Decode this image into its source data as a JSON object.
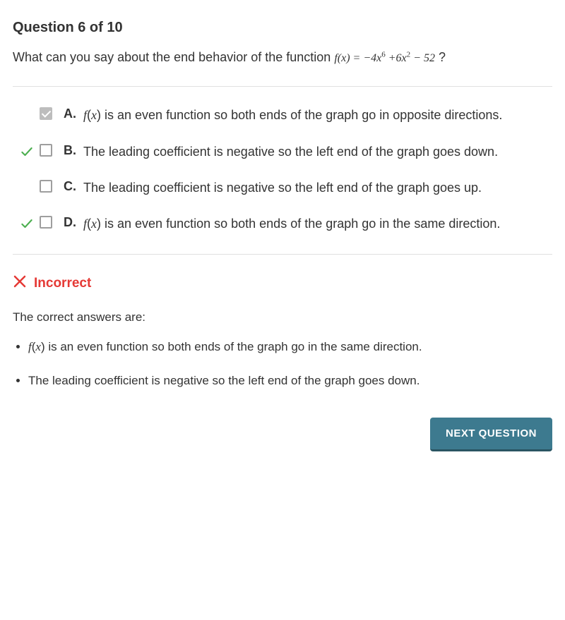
{
  "header": "Question 6 of 10",
  "prompt_prefix": "What can you say about the end behavior of the function ",
  "prompt_fn_html": "<span class='fn'><span class='var'>f</span>(<span class='var'>x</span>) = −4<span class='var'>x</span><span class='exp'>6</span> +6<span class='var'>x</span><span class='exp'>2</span> − 52</span>",
  "prompt_suffix": " ?",
  "options": [
    {
      "letter": "A.",
      "checked": true,
      "correct_mark": false,
      "text_html": "<span class='fx'>f</span>(<span class='fx'>x</span>) is an even function so both ends of the graph go in opposite directions."
    },
    {
      "letter": "B.",
      "checked": false,
      "correct_mark": true,
      "text_html": "The leading coefficient is negative so the left end of the graph goes down."
    },
    {
      "letter": "C.",
      "checked": false,
      "correct_mark": false,
      "text_html": "The leading coefficient is negative so the left end of the graph goes up."
    },
    {
      "letter": "D.",
      "checked": false,
      "correct_mark": true,
      "text_html": "<span class='fx'>f</span>(<span class='fx'>x</span>) is an even function so both ends of the graph go in the same direction."
    }
  ],
  "feedback_label": "Incorrect",
  "correct_answers_label": "The correct answers are:",
  "correct_answers": [
    "<span class='fx'>f</span>(<span class='fx'>x</span>) is an even function so both ends of the graph go in the same direction.",
    "The leading coefficient is negative so the left end of the graph goes down."
  ],
  "next_button": "NEXT QUESTION",
  "colors": {
    "correct_check": "#4caf50",
    "error": "#e53935",
    "button_bg": "#3d7a8f"
  }
}
